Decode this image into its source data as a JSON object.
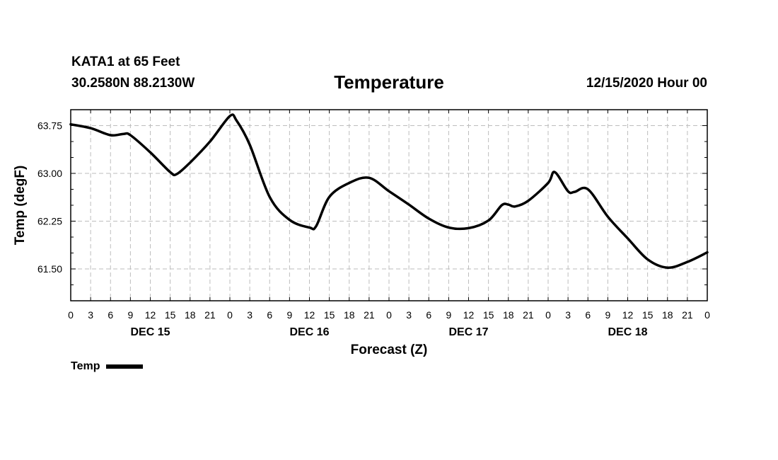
{
  "header": {
    "station": "KATA1 at 65 Feet",
    "coords": "30.2580N 88.2130W",
    "title": "Temperature",
    "run": "12/15/2020 Hour 00"
  },
  "legend": {
    "label": "Temp"
  },
  "chart_data": {
    "type": "line",
    "title": "Temperature",
    "xlabel": "Forecast (Z)",
    "ylabel": "Temp (degF)",
    "xlim": [
      0,
      96
    ],
    "ylim": [
      61.0,
      64.0
    ],
    "grid": true,
    "legend_position": "bottom-left",
    "y_ticks": [
      61.5,
      62.25,
      63.0,
      63.75
    ],
    "y_tick_labels": [
      "61.50",
      "62.25",
      "63.00",
      "63.75"
    ],
    "x_ticks": [
      0,
      3,
      6,
      9,
      12,
      15,
      18,
      21,
      24,
      27,
      30,
      33,
      36,
      39,
      42,
      45,
      48,
      51,
      54,
      57,
      60,
      63,
      66,
      69,
      72,
      75,
      78,
      81,
      84,
      87,
      90,
      93,
      96
    ],
    "x_tick_labels": [
      "0",
      "3",
      "6",
      "9",
      "12",
      "15",
      "18",
      "21",
      "0",
      "3",
      "6",
      "9",
      "12",
      "15",
      "18",
      "21",
      "0",
      "3",
      "6",
      "9",
      "12",
      "15",
      "18",
      "21",
      "0",
      "3",
      "6",
      "9",
      "12",
      "15",
      "18",
      "21",
      "0"
    ],
    "day_labels": [
      {
        "x": 12,
        "label": "DEC 15"
      },
      {
        "x": 36,
        "label": "DEC 16"
      },
      {
        "x": 60,
        "label": "DEC 17"
      },
      {
        "x": 84,
        "label": "DEC 18"
      }
    ],
    "series": [
      {
        "name": "Temp",
        "x": [
          0,
          3,
          6,
          8,
          9,
          12,
          15,
          16,
          18,
          21,
          24,
          25,
          27,
          30,
          33,
          36,
          37,
          39,
          42,
          45,
          48,
          51,
          54,
          57,
          60,
          63,
          65,
          66,
          67,
          69,
          72,
          73,
          75,
          76,
          78,
          81,
          84,
          87,
          90,
          93,
          96
        ],
        "y": [
          63.77,
          63.71,
          63.6,
          63.62,
          63.6,
          63.33,
          63.02,
          62.99,
          63.17,
          63.5,
          63.9,
          63.83,
          63.45,
          62.63,
          62.27,
          62.15,
          62.17,
          62.63,
          62.85,
          62.93,
          62.72,
          62.51,
          62.29,
          62.15,
          62.14,
          62.26,
          62.5,
          62.51,
          62.48,
          62.57,
          62.85,
          63.02,
          62.72,
          62.71,
          62.75,
          62.32,
          61.98,
          61.65,
          61.52,
          61.61,
          61.76
        ]
      }
    ]
  }
}
